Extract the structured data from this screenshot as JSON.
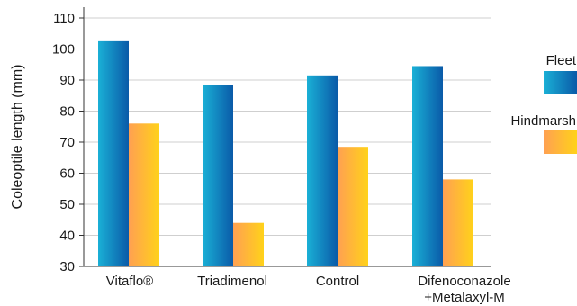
{
  "chart_data": {
    "type": "bar",
    "title": "",
    "xlabel": "",
    "ylabel": "Coleoptile length (mm)",
    "ylim": [
      30,
      110
    ],
    "yticks": [
      30,
      40,
      50,
      60,
      70,
      80,
      90,
      100,
      110
    ],
    "grid": "horizontal",
    "legend_position": "right",
    "categories": [
      [
        "Vitaflo®"
      ],
      [
        "Triadimenol"
      ],
      [
        "Control"
      ],
      [
        "Difenoconazole",
        "+Metalaxyl-M"
      ]
    ],
    "series": [
      {
        "name": "Fleet",
        "values": [
          102.5,
          88.5,
          91.5,
          94.5
        ],
        "color_dark": "#0a5aa8",
        "color_light": "#1ab0d6"
      },
      {
        "name": "Hindmarsh",
        "values": [
          76,
          44,
          68.5,
          58
        ],
        "color_dark": "#ffd21a",
        "color_light": "#ffa052"
      }
    ]
  }
}
